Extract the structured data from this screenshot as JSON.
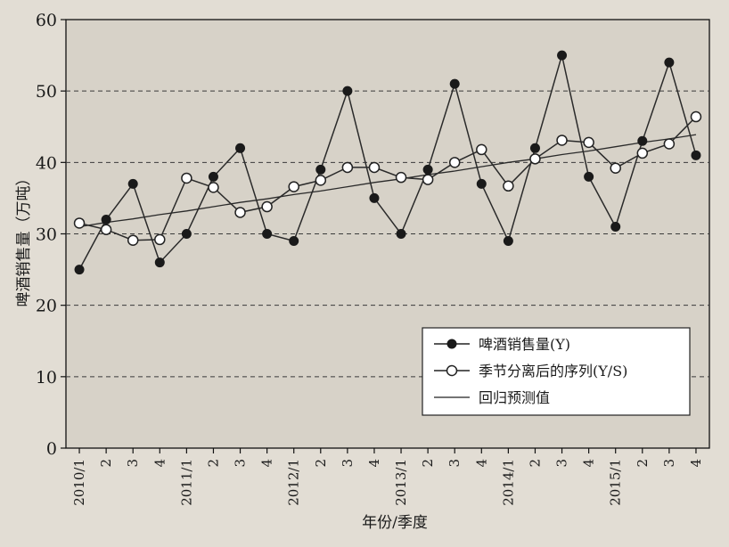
{
  "chart_data": {
    "type": "line",
    "title": "",
    "xlabel": "年份/季度",
    "ylabel": "啤酒销售量（万吨）",
    "ylim": [
      0,
      60
    ],
    "yticks": [
      0,
      10,
      20,
      30,
      40,
      50,
      60
    ],
    "grid": "horizontal-dashed",
    "legend_position": "bottom-right",
    "categories": [
      "2010/1",
      "2",
      "3",
      "4",
      "2011/1",
      "2",
      "3",
      "4",
      "2012/1",
      "2",
      "3",
      "4",
      "2013/1",
      "2",
      "3",
      "4",
      "2014/1",
      "2",
      "3",
      "4",
      "2015/1",
      "2",
      "3",
      "4"
    ],
    "series": [
      {
        "name": "啤酒销售量(Y)",
        "marker": "filled-circle",
        "values": [
          25,
          32,
          37,
          26,
          30,
          38,
          42,
          30,
          29,
          39,
          50,
          35,
          30,
          39,
          51,
          37,
          29,
          42,
          55,
          38,
          31,
          43,
          54,
          41
        ]
      },
      {
        "name": "季节分离后的序列(Y/S)",
        "marker": "hollow-circle",
        "values": [
          31.5,
          30.6,
          29.1,
          29.2,
          37.8,
          36.5,
          33.0,
          33.8,
          36.6,
          37.5,
          39.3,
          39.3,
          37.9,
          37.6,
          40.0,
          41.8,
          36.7,
          40.5,
          43.1,
          42.8,
          39.2,
          41.3,
          42.6,
          46.4
        ]
      },
      {
        "name": "回归预测值",
        "marker": "none",
        "values": [
          31.0,
          31.6,
          32.1,
          32.7,
          33.2,
          33.8,
          34.4,
          34.9,
          35.5,
          36.0,
          36.6,
          37.2,
          37.7,
          38.3,
          38.8,
          39.4,
          40.0,
          40.5,
          41.1,
          41.6,
          42.2,
          42.8,
          43.3,
          43.9
        ]
      }
    ]
  },
  "colors": {
    "plot_background": "#d7d2c8",
    "line": "#2a2a2a",
    "grid": "#3a3a3a",
    "legend_background": "#ffffff"
  }
}
